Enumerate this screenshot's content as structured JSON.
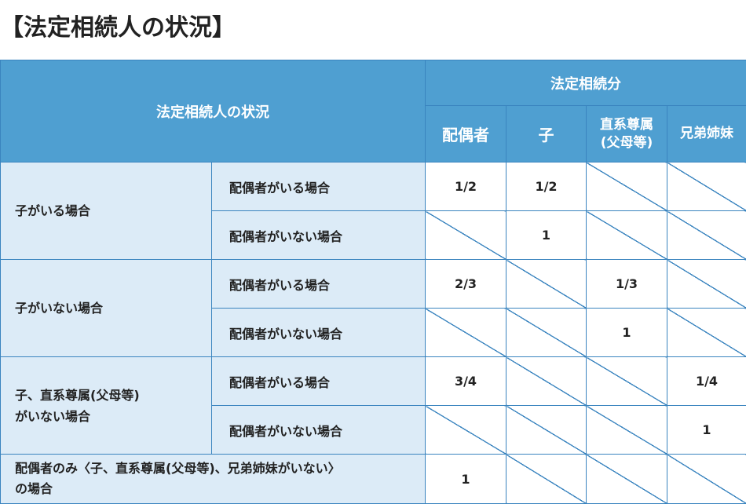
{
  "title": "【法定相続人の状況】",
  "header": {
    "situation": "法定相続人の状況",
    "shares": "法定相続分",
    "col_spouse": "配偶者",
    "col_child": "子",
    "col_ascendant_line1": "直系尊属",
    "col_ascendant_line2": "(父母等)",
    "col_sibling": "兄弟姉妹"
  },
  "groups": [
    {
      "label_line1": "子がいる場合",
      "label_line2": "",
      "rows": [
        {
          "label": "配偶者がいる場合",
          "spouse": "1/2",
          "child": "1/2",
          "ascendant": "",
          "sibling": ""
        },
        {
          "label": "配偶者がいない場合",
          "spouse": "",
          "child": "1",
          "ascendant": "",
          "sibling": ""
        }
      ]
    },
    {
      "label_line1": "子がいない場合",
      "label_line2": "",
      "rows": [
        {
          "label": "配偶者がいる場合",
          "spouse": "2/3",
          "child": "",
          "ascendant": "1/3",
          "sibling": ""
        },
        {
          "label": "配偶者がいない場合",
          "spouse": "",
          "child": "",
          "ascendant": "1",
          "sibling": ""
        }
      ]
    },
    {
      "label_line1": "子、直系尊属(父母等)",
      "label_line2": "がいない場合",
      "rows": [
        {
          "label": "配偶者がいる場合",
          "spouse": "3/4",
          "child": "",
          "ascendant": "",
          "sibling": "1/4"
        },
        {
          "label": "配偶者がいない場合",
          "spouse": "",
          "child": "",
          "ascendant": "",
          "sibling": "1"
        }
      ]
    }
  ],
  "last_row": {
    "label_line1": "配偶者のみ〈子、直系尊属(父母等)、兄弟姉妹がいない〉",
    "label_line2": "の場合",
    "spouse": "1",
    "child": "",
    "ascendant": "",
    "sibling": ""
  }
}
